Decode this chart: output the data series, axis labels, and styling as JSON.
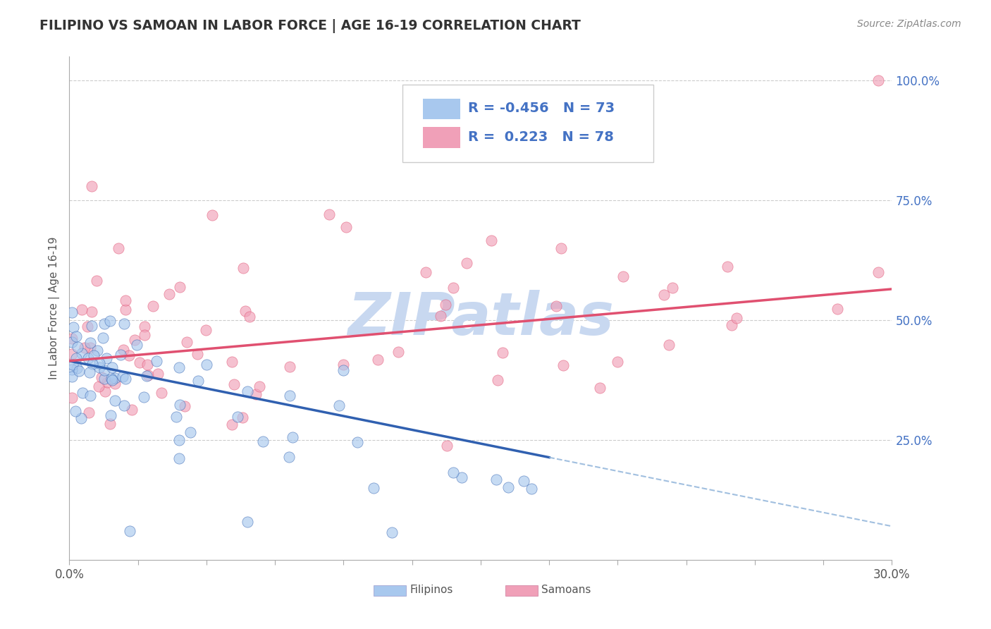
{
  "title": "FILIPINO VS SAMOAN IN LABOR FORCE | AGE 16-19 CORRELATION CHART",
  "source": "Source: ZipAtlas.com",
  "ylabel": "In Labor Force | Age 16-19",
  "xlim": [
    0.0,
    0.3
  ],
  "ylim": [
    0.0,
    1.05
  ],
  "filipino_color": "#A8C8EE",
  "samoan_color": "#F0A0B8",
  "filipino_line_color": "#3060B0",
  "samoan_line_color": "#E05070",
  "dashed_line_color": "#8AB0D8",
  "R_filipino": -0.456,
  "N_filipino": 73,
  "R_samoan": 0.223,
  "N_samoan": 78,
  "background_color": "#FFFFFF",
  "watermark_text": "ZIPatlas",
  "watermark_color": "#C8D8F0",
  "legend_text_color": "#4472C4",
  "ytick_color": "#4472C4",
  "title_color": "#333333",
  "source_color": "#888888",
  "grid_color": "#CCCCCC",
  "axis_color": "#AAAAAA"
}
